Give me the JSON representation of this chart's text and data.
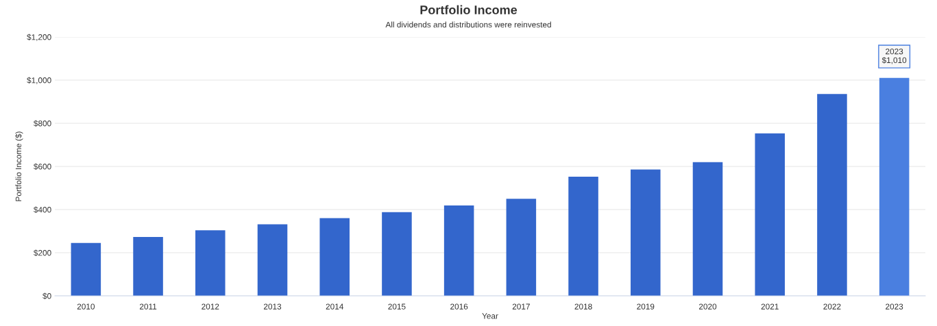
{
  "chart_data": {
    "type": "bar",
    "title": "Portfolio Income",
    "subtitle": "All dividends and distributions were reinvested",
    "xlabel": "Year",
    "ylabel": "Portfolio Income ($)",
    "categories": [
      "2010",
      "2011",
      "2012",
      "2013",
      "2014",
      "2015",
      "2016",
      "2017",
      "2018",
      "2019",
      "2020",
      "2021",
      "2022",
      "2023"
    ],
    "values": [
      245,
      273,
      304,
      332,
      360,
      388,
      419,
      450,
      552,
      586,
      620,
      753,
      936,
      1010
    ],
    "colors": [
      "#3366cc",
      "#3366cc",
      "#3366cc",
      "#3366cc",
      "#3366cc",
      "#3366cc",
      "#3366cc",
      "#3366cc",
      "#3366cc",
      "#3366cc",
      "#3366cc",
      "#3366cc",
      "#3366cc",
      "#4a7fe0"
    ],
    "ylim": [
      0,
      1200
    ],
    "yticks": [
      {
        "value": 0,
        "label": "$0"
      },
      {
        "value": 200,
        "label": "$200"
      },
      {
        "value": 400,
        "label": "$400"
      },
      {
        "value": 600,
        "label": "$600"
      },
      {
        "value": 800,
        "label": "$800"
      },
      {
        "value": 1000,
        "label": "$1,000"
      },
      {
        "value": 1200,
        "label": "$1,200"
      }
    ],
    "grid": "y",
    "annotations": [
      {
        "text": "2023\n$1,010",
        "x": "2023",
        "y": 1010
      }
    ]
  }
}
